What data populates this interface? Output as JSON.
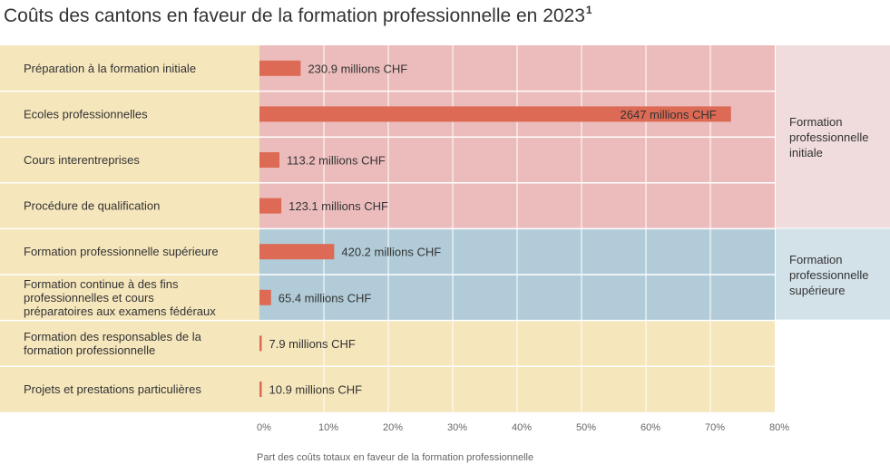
{
  "title": "Coûts des cantons en faveur de la formation professionnelle en 2023",
  "title_footnote": "1",
  "chart_data": {
    "type": "bar",
    "orientation": "horizontal",
    "unit": "millions CHF",
    "categories": [
      "Préparation à la formation initiale",
      "Ecoles professionnelles",
      "Cours interentreprises",
      "Procédure de qualification",
      "Formation professionnelle supérieure",
      "Formation continue à des fins professionnelles et cours préparatoires aux examens fédéraux",
      "Formation des responsables de la formation professionnelle",
      "Projets et prestations particulières"
    ],
    "category_lines": [
      [
        "Préparation à la formation initiale"
      ],
      [
        "Ecoles professionnelles"
      ],
      [
        "Cours interentreprises"
      ],
      [
        "Procédure de qualification"
      ],
      [
        "Formation professionnelle supérieure"
      ],
      [
        "Formation continue à des fins",
        "professionnelles et cours",
        "préparatoires aux examens fédéraux"
      ],
      [
        "Formation des responsables de la",
        "formation professionnelle"
      ],
      [
        "Projets et prestations particulières"
      ]
    ],
    "values_pct": [
      6.4,
      73.2,
      3.1,
      3.4,
      11.6,
      1.8,
      0.2,
      0.3
    ],
    "value_labels": [
      "230.9  millions CHF",
      "2647 millions CHF",
      "113.2 millions CHF",
      "123.1 millions CHF",
      "420.2 millions CHF",
      "65.4 millions CHF",
      "7.9 millions CHF",
      "10.9 millions CHF"
    ],
    "groups": [
      {
        "lines": [
          "Formation",
          "professionnelle",
          "initiale"
        ],
        "start": 0,
        "end": 3,
        "plot_color": "#ecbcbc",
        "label_color": "#f0dcdc"
      },
      {
        "lines": [
          "Formation",
          "professionnelle",
          "supérieure"
        ],
        "start": 4,
        "end": 5,
        "plot_color": "#b1ccd8",
        "label_color": "#d3e1e8"
      },
      {
        "lines": [],
        "start": 6,
        "end": 7,
        "plot_color": "#f5e6bc",
        "label_color": null
      }
    ],
    "xlim": [
      0,
      80
    ],
    "x_ticks": [
      "0%",
      "10%",
      "20%",
      "30%",
      "40%",
      "50%",
      "60%",
      "70%",
      "80%"
    ],
    "xlabel": "Part des coûts totaux en faveur de la formation professionnelle",
    "colors": {
      "bar": "#dc6a55",
      "category_panel": "#f5e6bc",
      "grid": "#ffffff",
      "text": "#333333",
      "axis_text": "#666666"
    }
  }
}
